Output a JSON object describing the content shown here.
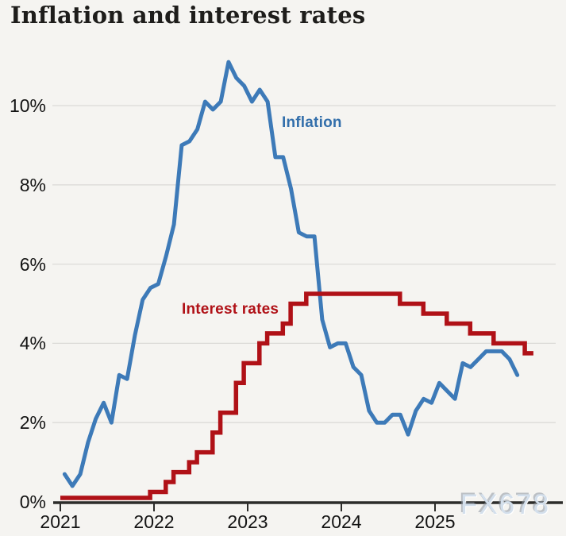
{
  "header": {
    "title": "Inflation and interest rates"
  },
  "watermark": {
    "text": "FX678"
  },
  "colors": {
    "background": "#f5f4f1",
    "grid": "#dcdbd8",
    "axis": "#2c2c2a",
    "text": "#131313",
    "inflation_blue": "#3d7ab8",
    "rates_red": "#b01117",
    "watermark": "#d3dfec"
  },
  "chart_data": {
    "type": "line",
    "title": "Inflation and interest rates",
    "x_axis": {
      "unit": "year",
      "tick_values": [
        2021,
        2022,
        2023,
        2024,
        2025
      ],
      "tick_labels": [
        "2021",
        "2022",
        "2023",
        "2024",
        "2025"
      ]
    },
    "y_axis": {
      "unit": "percent",
      "tick_values": [
        0,
        2,
        4,
        6,
        8,
        10
      ],
      "tick_labels": [
        "0%",
        "2%",
        "4%",
        "6%",
        "8%",
        "10%"
      ],
      "range": [
        0,
        11.7
      ],
      "grid": "horizontal-only"
    },
    "legend": "inline-labels-on-chart",
    "series": [
      {
        "name": "Inflation",
        "style": "line",
        "color": "#3d7ab8",
        "frequency": "monthly",
        "start_month": "2021-01",
        "end_month": "2025-11",
        "values": [
          0.7,
          0.4,
          0.7,
          1.5,
          2.1,
          2.5,
          2.0,
          3.2,
          3.1,
          4.2,
          5.1,
          5.4,
          5.5,
          6.2,
          7.0,
          9.0,
          9.1,
          9.4,
          10.1,
          9.9,
          10.1,
          11.1,
          10.7,
          10.5,
          10.1,
          10.4,
          10.1,
          8.7,
          8.7,
          7.9,
          6.8,
          6.7,
          6.7,
          4.6,
          3.9,
          4.0,
          4.0,
          3.4,
          3.2,
          2.3,
          2.0,
          2.0,
          2.2,
          2.2,
          1.7,
          2.3,
          2.6,
          2.5,
          3.0,
          2.8,
          2.6,
          3.5,
          3.4,
          3.6,
          3.8,
          3.8,
          3.8,
          3.6,
          3.2
        ]
      },
      {
        "name": "Interest rates",
        "style": "step",
        "color": "#b01117",
        "steps": [
          [
            "2021-01",
            0.1
          ],
          [
            "2021-12",
            0.25
          ],
          [
            "2022-02",
            0.5
          ],
          [
            "2022-03",
            0.75
          ],
          [
            "2022-05",
            1.0
          ],
          [
            "2022-06",
            1.25
          ],
          [
            "2022-08",
            1.75
          ],
          [
            "2022-09",
            2.25
          ],
          [
            "2022-11",
            3.0
          ],
          [
            "2022-12",
            3.5
          ],
          [
            "2023-02",
            4.0
          ],
          [
            "2023-03",
            4.25
          ],
          [
            "2023-05",
            4.5
          ],
          [
            "2023-06",
            5.0
          ],
          [
            "2023-08",
            5.25
          ],
          [
            "2024-08",
            5.0
          ],
          [
            "2024-11",
            4.75
          ],
          [
            "2025-02",
            4.5
          ],
          [
            "2025-05",
            4.25
          ],
          [
            "2025-08",
            4.0
          ],
          [
            "2025-12",
            3.75
          ]
        ],
        "extend_to": "2026-01"
      }
    ]
  }
}
